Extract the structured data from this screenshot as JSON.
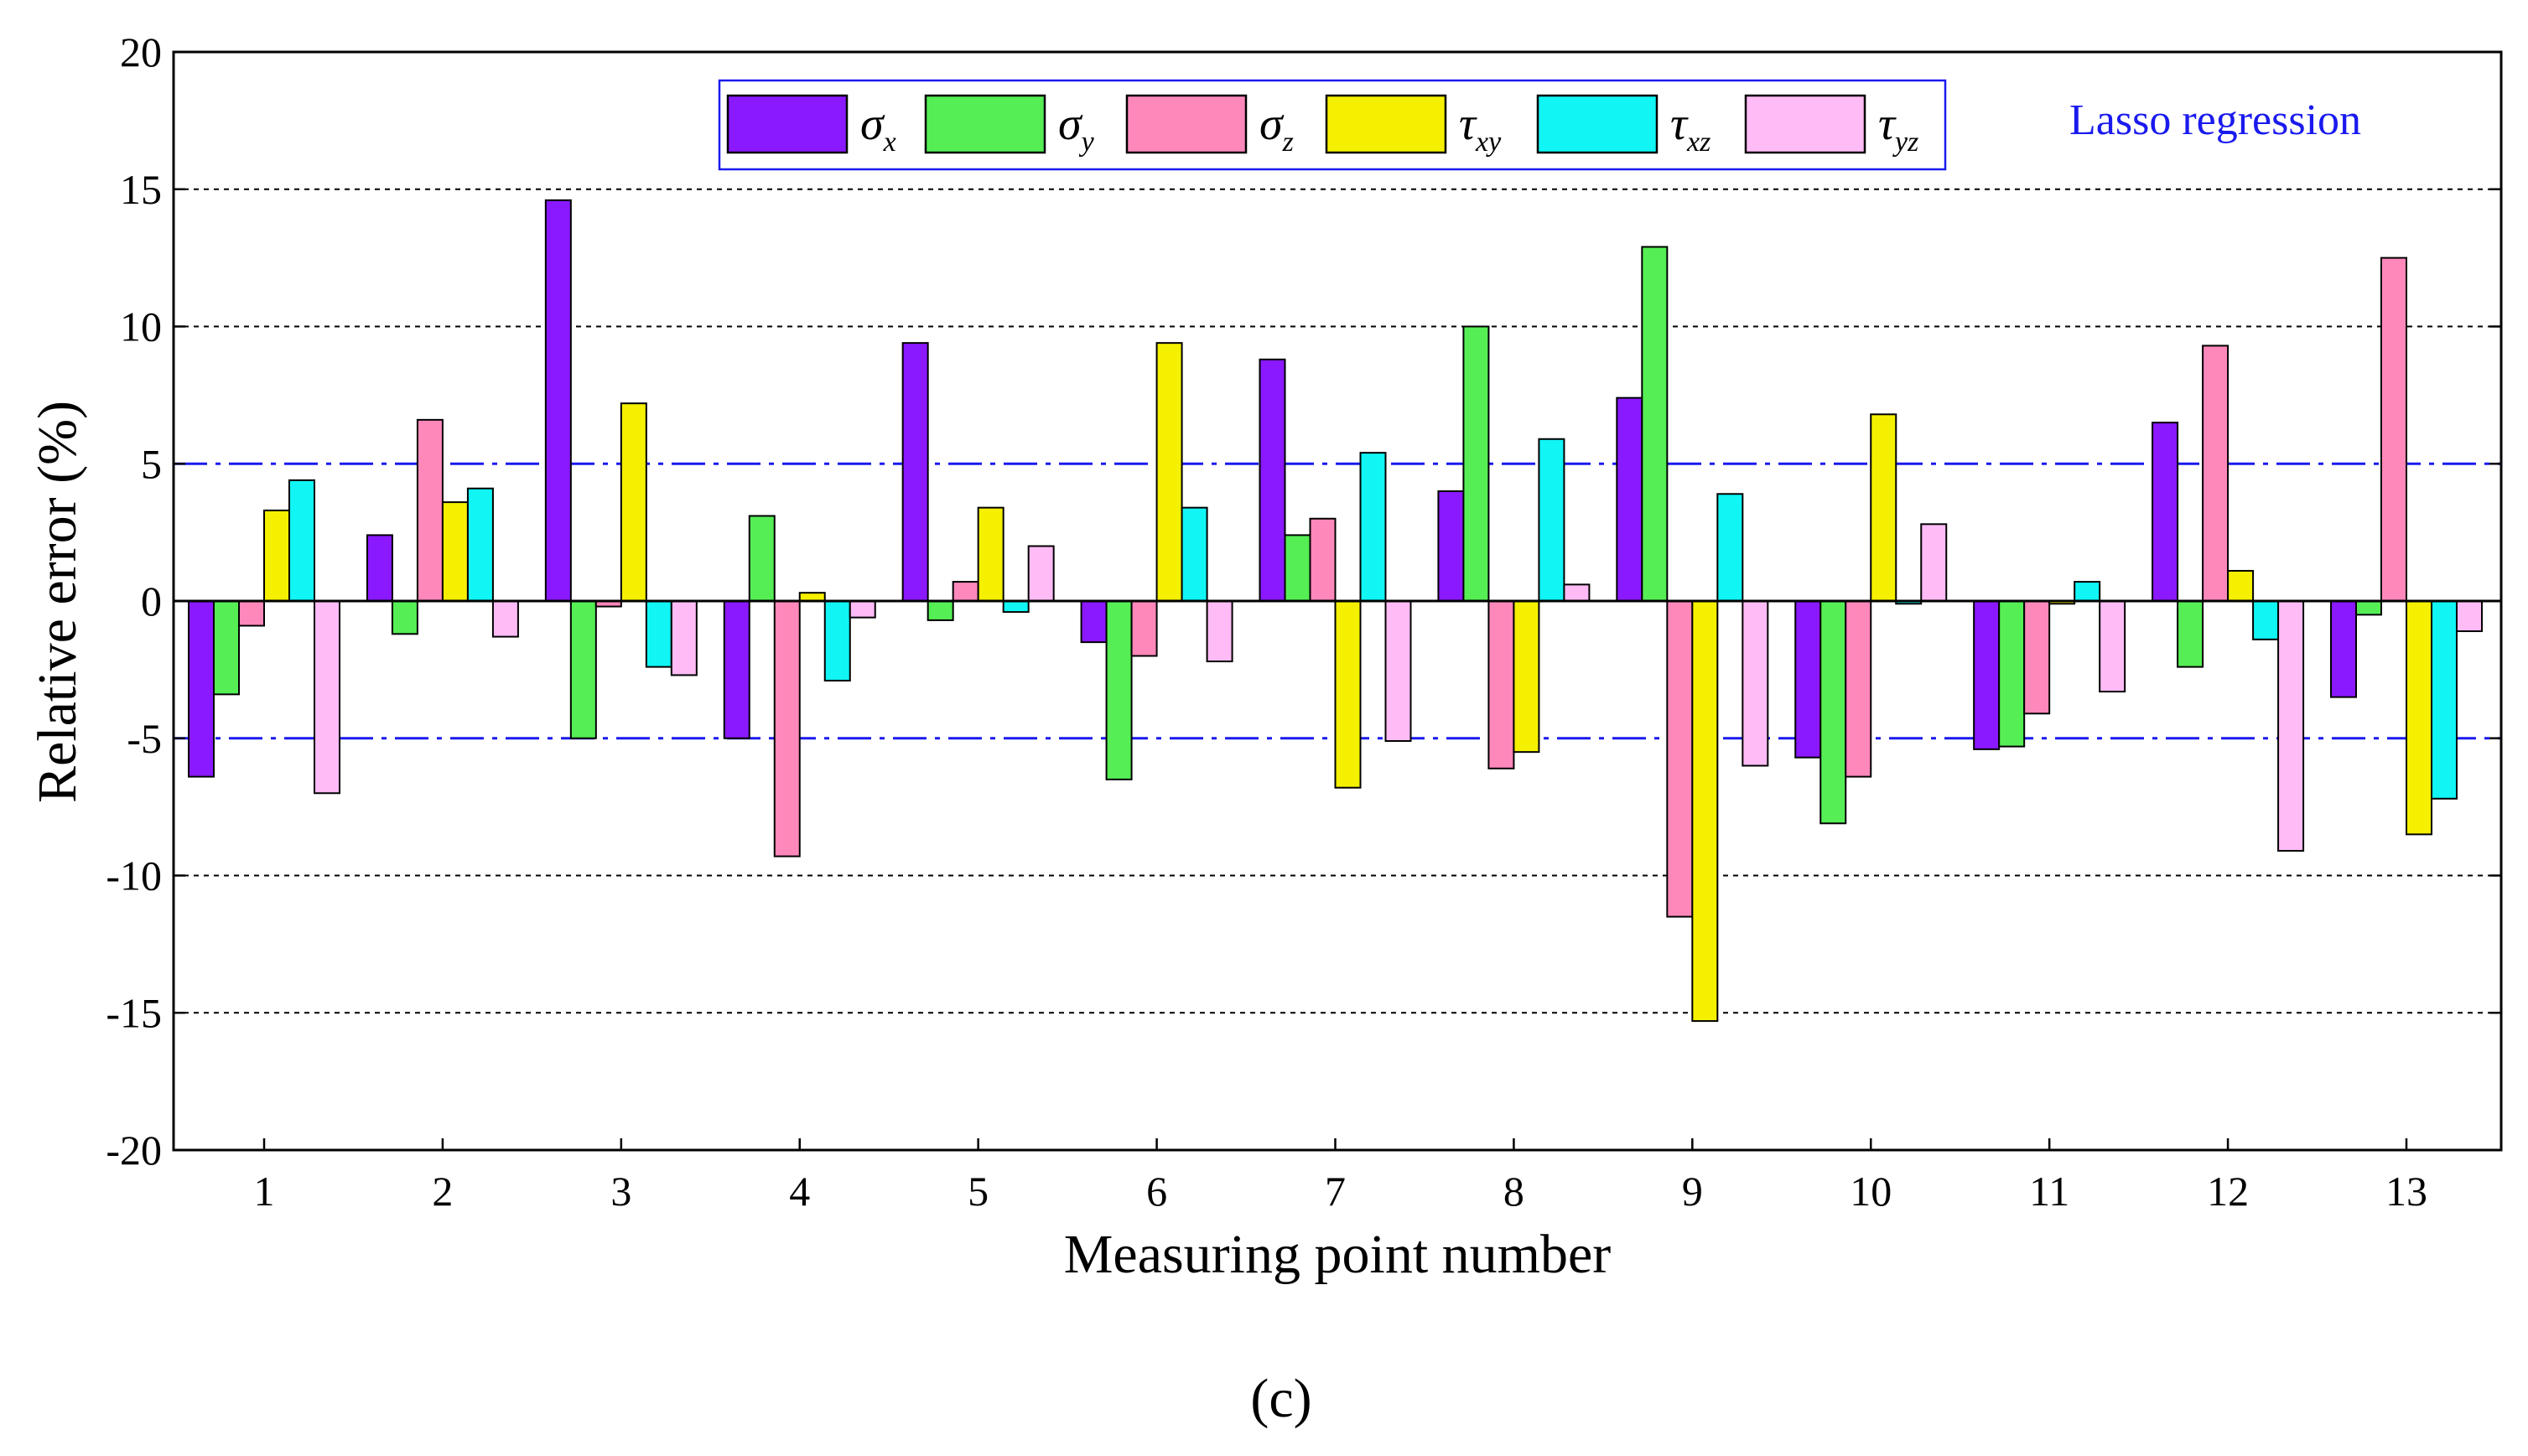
{
  "chart_data": {
    "type": "bar",
    "xlabel": "Measuring point number",
    "ylabel": "Relative error (%)",
    "ylim": [
      -20,
      20
    ],
    "yticks": [
      -20,
      -15,
      -10,
      -5,
      0,
      5,
      10,
      15,
      20
    ],
    "categories": [
      "1",
      "2",
      "3",
      "4",
      "5",
      "6",
      "7",
      "8",
      "9",
      "10",
      "11",
      "12",
      "13"
    ],
    "grid_lines": [
      -15,
      -10,
      10,
      15
    ],
    "threshold_lines": [
      -5,
      5
    ],
    "annotation": "Lasso regression",
    "panel_label": "(c)",
    "legend_placement": "top-center",
    "series": [
      {
        "name": "σx",
        "base": "σ",
        "sub": "x",
        "color": "#8a19ff",
        "values": [
          -6.4,
          2.4,
          14.6,
          -5.0,
          9.4,
          -1.5,
          8.8,
          4.0,
          7.4,
          -5.7,
          -5.4,
          6.5,
          -3.5
        ]
      },
      {
        "name": "σy",
        "base": "σ",
        "sub": "y",
        "color": "#55ee55",
        "values": [
          -3.4,
          -1.2,
          -5.0,
          3.1,
          -0.7,
          -6.5,
          2.4,
          10.0,
          12.9,
          -8.1,
          -5.3,
          -2.4,
          -0.5
        ]
      },
      {
        "name": "σz",
        "base": "σ",
        "sub": "z",
        "color": "#ff88bb",
        "values": [
          -0.9,
          6.6,
          -0.2,
          -9.3,
          0.7,
          -2.0,
          3.0,
          -6.1,
          -11.5,
          -6.4,
          -4.1,
          9.3,
          12.5
        ]
      },
      {
        "name": "τxy",
        "base": "τ",
        "sub": "xy",
        "color": "#f5f000",
        "values": [
          3.3,
          3.6,
          7.2,
          0.3,
          3.4,
          9.4,
          -6.8,
          -5.5,
          -15.3,
          6.8,
          -0.1,
          1.1,
          -8.5
        ]
      },
      {
        "name": "τxz",
        "base": "τ",
        "sub": "xz",
        "color": "#11f5f5",
        "values": [
          4.4,
          4.1,
          -2.4,
          -2.9,
          -0.4,
          3.4,
          5.4,
          5.9,
          3.9,
          -0.1,
          0.7,
          -1.4,
          -7.2
        ]
      },
      {
        "name": "τyz",
        "base": "τ",
        "sub": "yz",
        "color": "#ffbbf5",
        "values": [
          -7.0,
          -1.3,
          -2.7,
          -0.6,
          2.0,
          -2.2,
          -5.1,
          0.6,
          -6.0,
          2.8,
          -3.3,
          -9.1,
          -1.1
        ]
      }
    ]
  }
}
